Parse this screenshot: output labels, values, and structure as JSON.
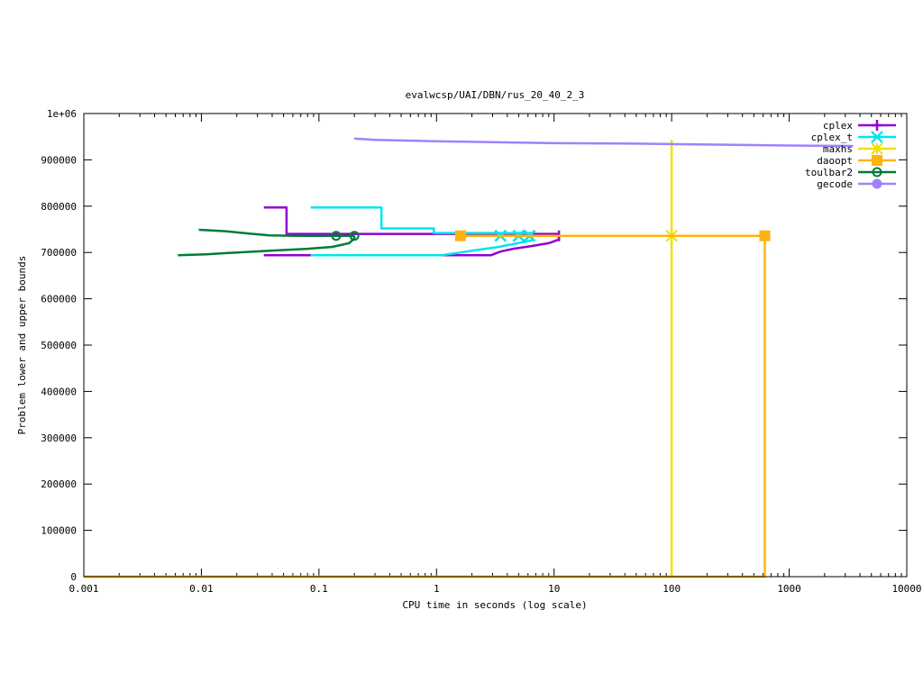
{
  "chart_data": {
    "type": "line",
    "title": "evalwcsp/UAI/DBN/rus_20_40_2_3",
    "xlabel": "CPU time in seconds (log scale)",
    "ylabel": "Problem lower and upper bounds",
    "xscale": "log",
    "xlim": [
      0.001,
      10000
    ],
    "ylim": [
      0,
      1000000
    ],
    "x_ticks": [
      {
        "value": 0.001,
        "label": "0.001"
      },
      {
        "value": 0.01,
        "label": "0.01"
      },
      {
        "value": 0.1,
        "label": "0.1"
      },
      {
        "value": 1,
        "label": "1"
      },
      {
        "value": 10,
        "label": "10"
      },
      {
        "value": 100,
        "label": "100"
      },
      {
        "value": 1000,
        "label": "1000"
      },
      {
        "value": 10000,
        "label": "10000"
      }
    ],
    "y_ticks": [
      {
        "value": 0,
        "label": "0"
      },
      {
        "value": 100000,
        "label": "100000"
      },
      {
        "value": 200000,
        "label": "200000"
      },
      {
        "value": 300000,
        "label": "300000"
      },
      {
        "value": 400000,
        "label": "400000"
      },
      {
        "value": 500000,
        "label": "500000"
      },
      {
        "value": 600000,
        "label": "600000"
      },
      {
        "value": 700000,
        "label": "700000"
      },
      {
        "value": 800000,
        "label": "800000"
      },
      {
        "value": 900000,
        "label": "900000"
      },
      {
        "value": 1000000,
        "label": "1e+06"
      }
    ],
    "grid": false,
    "legend_position": "top-right",
    "series": [
      {
        "name": "cplex",
        "color": "#9400d3",
        "marker": "plus",
        "lines": [
          [
            [
              0.034,
              797000
            ],
            [
              0.053,
              797000
            ],
            [
              0.053,
              740000
            ],
            [
              11,
              740000
            ]
          ],
          [
            [
              0.034,
              694000
            ],
            [
              2.9,
              694000
            ],
            [
              3.5,
              702000
            ],
            [
              4.5,
              708000
            ],
            [
              6.5,
              714000
            ],
            [
              9.0,
              720000
            ],
            [
              11,
              728000
            ],
            [
              11,
              740000
            ]
          ]
        ],
        "markers": [
          [
            11,
            736000
          ]
        ]
      },
      {
        "name": "cplex_t",
        "color": "#00e5ee",
        "marker": "x",
        "lines": [
          [
            [
              0.085,
              797000
            ],
            [
              0.34,
              797000
            ],
            [
              0.34,
              752000
            ],
            [
              0.95,
              752000
            ],
            [
              0.95,
              742000
            ],
            [
              6.5,
              742000
            ]
          ],
          [
            [
              0.085,
              694000
            ],
            [
              1.1,
              694000
            ],
            [
              1.6,
              700000
            ],
            [
              2.3,
              706000
            ],
            [
              3.4,
              712000
            ],
            [
              4.5,
              718000
            ],
            [
              6.5,
              726000
            ],
            [
              6.5,
              736000
            ]
          ]
        ],
        "markers": [
          [
            3.5,
            736000
          ],
          [
            5.0,
            736000
          ],
          [
            6.2,
            736000
          ]
        ]
      },
      {
        "name": "maxhs",
        "color": "#f0e000",
        "marker": "star",
        "lines": [
          [
            [
              0.001,
              0
            ],
            [
              100,
              0
            ],
            [
              100,
              943000
            ]
          ],
          [
            [
              100,
              736000
            ],
            [
              620,
              736000
            ]
          ]
        ],
        "markers": [
          [
            100,
            736000
          ]
        ]
      },
      {
        "name": "daoopt",
        "color": "#ffb30f",
        "marker": "square",
        "lines": [
          [
            [
              1.6,
              736000
            ],
            [
              620,
              736000
            ],
            [
              620,
              0
            ],
            [
              0.001,
              0
            ]
          ]
        ],
        "markers": [
          [
            1.6,
            736000
          ],
          [
            620,
            736000
          ]
        ]
      },
      {
        "name": "toulbar2",
        "color": "#007c3a",
        "marker": "circle",
        "lines": [
          [
            [
              0.0095,
              749000
            ],
            [
              0.016,
              746000
            ],
            [
              0.025,
              741000
            ],
            [
              0.038,
              737000
            ],
            [
              0.07,
              736000
            ],
            [
              0.2,
              736000
            ]
          ],
          [
            [
              0.0063,
              694000
            ],
            [
              0.011,
              696000
            ],
            [
              0.02,
              700000
            ],
            [
              0.04,
              704000
            ],
            [
              0.08,
              708000
            ],
            [
              0.13,
              712000
            ],
            [
              0.18,
              720000
            ],
            [
              0.2,
              730000
            ],
            [
              0.2,
              736000
            ]
          ]
        ],
        "markers": [
          [
            0.14,
            736000
          ],
          [
            0.2,
            736000
          ]
        ]
      },
      {
        "name": "gecode",
        "color": "#a080ff",
        "marker": "circle",
        "lines": [
          [
            [
              0.2,
              946000
            ],
            [
              0.3,
              943000
            ],
            [
              1.0,
              940000
            ],
            [
              10,
              936000
            ],
            [
              50,
              935000
            ],
            [
              200,
              933000
            ],
            [
              1000,
              931000
            ],
            [
              3500,
              930000
            ]
          ]
        ],
        "markers": []
      }
    ]
  }
}
